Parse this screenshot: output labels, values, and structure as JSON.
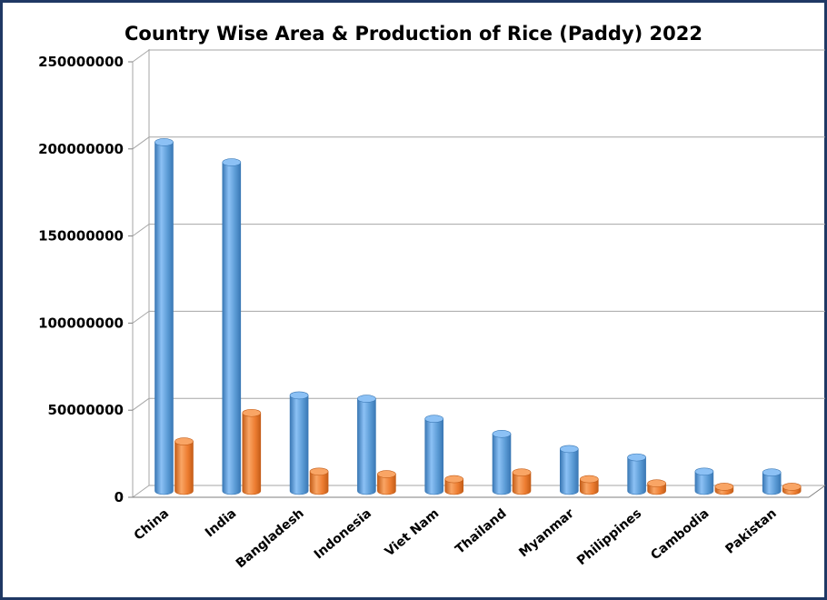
{
  "chart_data": {
    "type": "bar",
    "title": "Country Wise Area & Production of Rice (Paddy) 2022",
    "xlabel": "",
    "ylabel": "",
    "ylim": [
      0,
      250000000
    ],
    "yticks": [
      "0",
      "50000000",
      "100000000",
      "150000000",
      "200000000",
      "250000000"
    ],
    "yticks_values": [
      0,
      50000000,
      100000000,
      150000000,
      200000000,
      250000000
    ],
    "grid": true,
    "legend": "none",
    "categories": [
      "China",
      "India",
      "Bangladesh",
      "Indonesia",
      "Viet Nam",
      "Thailand",
      "Myanmar",
      "Philippines",
      "Cambodia",
      "Pakistan"
    ],
    "series": [
      {
        "values": [
          208000000,
          196000000,
          57000000,
          55000000,
          43000000,
          34000000,
          25000000,
          20000000,
          11500000,
          11000000
        ]
      },
      {
        "values": [
          29500000,
          46500000,
          11500000,
          10000000,
          7000000,
          11000000,
          7000000,
          4500000,
          2500000,
          2500000
        ]
      }
    ],
    "colors": {
      "series": [
        "#5b9bd5",
        "#ed7d31"
      ],
      "series_light": [
        "#8cc1f5",
        "#f9a565"
      ],
      "series_dark": [
        "#3a78b5",
        "#c45d18"
      ],
      "grid": "#a6a6a6",
      "frame": "#1f3864"
    }
  }
}
